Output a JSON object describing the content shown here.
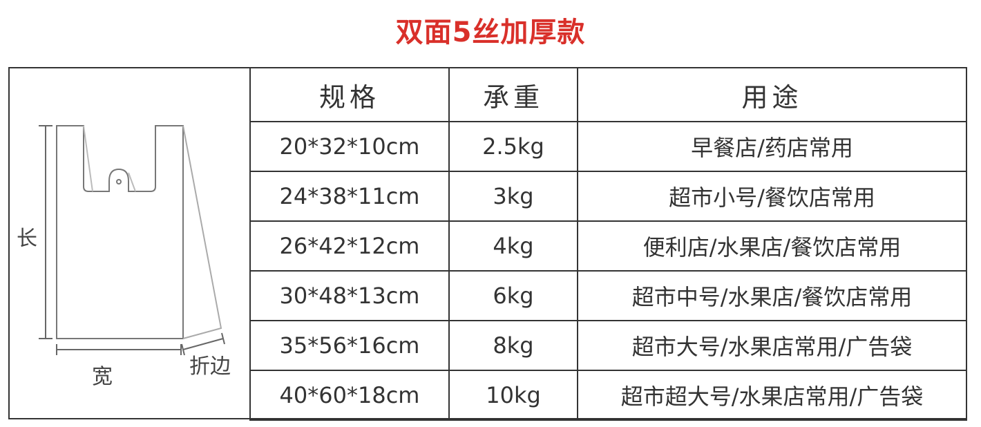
{
  "title": "双面5丝加厚款",
  "title_color": "#d9302a",
  "diagram": {
    "length_label": "长",
    "width_label": "宽",
    "fold_label": "折边"
  },
  "table": {
    "headers": [
      "规格",
      "承重",
      "用途"
    ],
    "rows": [
      [
        "20*32*10cm",
        "2.5kg",
        "早餐店/药店常用"
      ],
      [
        "24*38*11cm",
        "3kg",
        "超市小号/餐饮店常用"
      ],
      [
        "26*42*12cm",
        "4kg",
        "便利店/水果店/餐饮店常用"
      ],
      [
        "30*48*13cm",
        "6kg",
        "超市中号/水果店/餐饮店常用"
      ],
      [
        "35*56*16cm",
        "8kg",
        "超市大号/水果店常用/广告袋"
      ],
      [
        "40*60*18cm",
        "10kg",
        "超市超大号/水果店常用/广告袋"
      ]
    ]
  }
}
